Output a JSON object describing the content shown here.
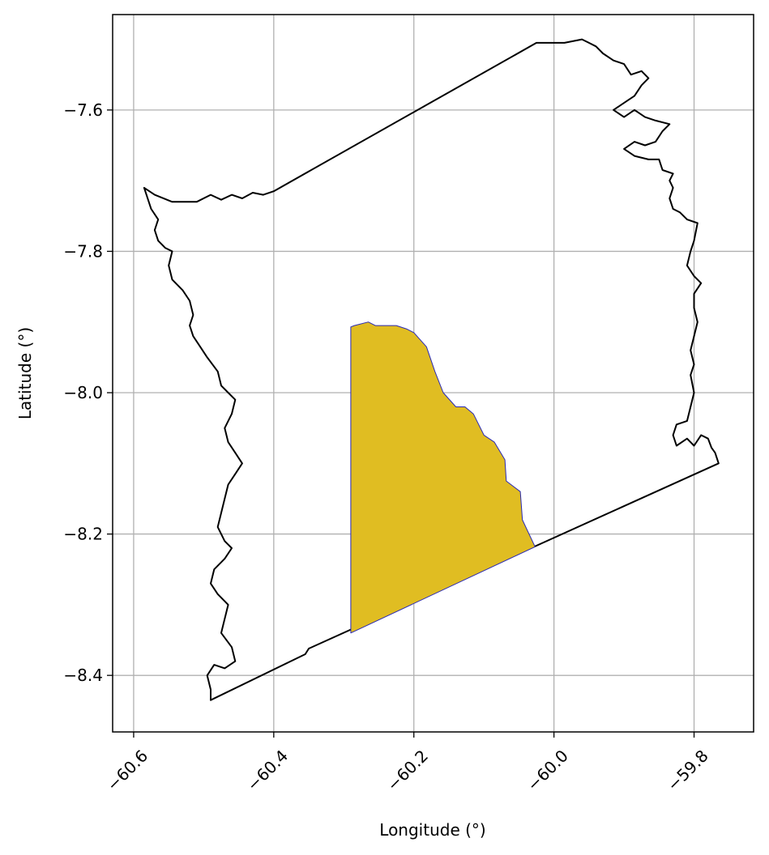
{
  "chart_data": {
    "type": "map",
    "xlabel": "Longitude (°)",
    "ylabel": "Latitude (°)",
    "xlim": [
      -60.63,
      -59.715
    ],
    "ylim": [
      -8.48,
      -7.465
    ],
    "xticks": [
      -60.6,
      -60.4,
      -60.2,
      -60.0,
      -59.8
    ],
    "xtick_labels": [
      "−60.6",
      "−60.4",
      "−60.2",
      "−60.0",
      "−59.8"
    ],
    "yticks": [
      -7.6,
      -7.8,
      -8.0,
      -8.2,
      -8.4
    ],
    "ytick_labels": [
      "−7.6",
      "−7.8",
      "−8.0",
      "−8.2",
      "−8.4"
    ],
    "grid": true,
    "xtick_rotation": 45,
    "layers": [
      {
        "name": "",
        "role": "outer-boundary",
        "fill": "none",
        "edge_color": "#000000",
        "coords": [
          [
            -60.49,
            -8.435
          ],
          [
            -60.355,
            -8.37
          ],
          [
            -60.35,
            -8.362
          ],
          [
            -59.765,
            -8.1
          ],
          [
            -59.77,
            -8.085
          ],
          [
            -59.775,
            -8.078
          ],
          [
            -59.78,
            -8.065
          ],
          [
            -59.79,
            -8.06
          ],
          [
            -59.8,
            -8.075
          ],
          [
            -59.81,
            -8.065
          ],
          [
            -59.825,
            -8.075
          ],
          [
            -59.83,
            -8.06
          ],
          [
            -59.825,
            -8.045
          ],
          [
            -59.81,
            -8.04
          ],
          [
            -59.805,
            -8.02
          ],
          [
            -59.8,
            -8.0
          ],
          [
            -59.805,
            -7.975
          ],
          [
            -59.8,
            -7.96
          ],
          [
            -59.805,
            -7.94
          ],
          [
            -59.8,
            -7.92
          ],
          [
            -59.795,
            -7.9
          ],
          [
            -59.8,
            -7.88
          ],
          [
            -59.8,
            -7.86
          ],
          [
            -59.79,
            -7.845
          ],
          [
            -59.8,
            -7.835
          ],
          [
            -59.81,
            -7.82
          ],
          [
            -59.805,
            -7.8
          ],
          [
            -59.8,
            -7.785
          ],
          [
            -59.795,
            -7.76
          ],
          [
            -59.81,
            -7.755
          ],
          [
            -59.82,
            -7.745
          ],
          [
            -59.83,
            -7.74
          ],
          [
            -59.835,
            -7.725
          ],
          [
            -59.83,
            -7.71
          ],
          [
            -59.835,
            -7.7
          ],
          [
            -59.83,
            -7.69
          ],
          [
            -59.845,
            -7.685
          ],
          [
            -59.85,
            -7.67
          ],
          [
            -59.865,
            -7.67
          ],
          [
            -59.885,
            -7.665
          ],
          [
            -59.9,
            -7.655
          ],
          [
            -59.885,
            -7.645
          ],
          [
            -59.87,
            -7.65
          ],
          [
            -59.855,
            -7.645
          ],
          [
            -59.845,
            -7.63
          ],
          [
            -59.835,
            -7.62
          ],
          [
            -59.855,
            -7.615
          ],
          [
            -59.87,
            -7.61
          ],
          [
            -59.885,
            -7.6
          ],
          [
            -59.9,
            -7.61
          ],
          [
            -59.915,
            -7.6
          ],
          [
            -59.9,
            -7.59
          ],
          [
            -59.885,
            -7.58
          ],
          [
            -59.875,
            -7.565
          ],
          [
            -59.865,
            -7.555
          ],
          [
            -59.875,
            -7.545
          ],
          [
            -59.89,
            -7.55
          ],
          [
            -59.9,
            -7.535
          ],
          [
            -59.915,
            -7.53
          ],
          [
            -59.93,
            -7.52
          ],
          [
            -59.94,
            -7.51
          ],
          [
            -59.95,
            -7.505
          ],
          [
            -59.96,
            -7.5
          ],
          [
            -59.985,
            -7.505
          ],
          [
            -60.025,
            -7.505
          ],
          [
            -60.4,
            -7.715
          ],
          [
            -60.415,
            -7.72
          ],
          [
            -60.43,
            -7.717
          ],
          [
            -60.445,
            -7.725
          ],
          [
            -60.46,
            -7.72
          ],
          [
            -60.475,
            -7.727
          ],
          [
            -60.49,
            -7.72
          ],
          [
            -60.51,
            -7.73
          ],
          [
            -60.545,
            -7.73
          ],
          [
            -60.57,
            -7.72
          ],
          [
            -60.585,
            -7.71
          ],
          [
            -60.575,
            -7.74
          ],
          [
            -60.565,
            -7.755
          ],
          [
            -60.57,
            -7.77
          ],
          [
            -60.565,
            -7.785
          ],
          [
            -60.555,
            -7.795
          ],
          [
            -60.545,
            -7.8
          ],
          [
            -60.55,
            -7.82
          ],
          [
            -60.545,
            -7.84
          ],
          [
            -60.53,
            -7.855
          ],
          [
            -60.52,
            -7.87
          ],
          [
            -60.515,
            -7.89
          ],
          [
            -60.52,
            -7.905
          ],
          [
            -60.515,
            -7.92
          ],
          [
            -60.505,
            -7.935
          ],
          [
            -60.495,
            -7.95
          ],
          [
            -60.48,
            -7.97
          ],
          [
            -60.475,
            -7.99
          ],
          [
            -60.465,
            -8.0
          ],
          [
            -60.455,
            -8.01
          ],
          [
            -60.46,
            -8.03
          ],
          [
            -60.47,
            -8.05
          ],
          [
            -60.465,
            -8.07
          ],
          [
            -60.455,
            -8.085
          ],
          [
            -60.445,
            -8.1
          ],
          [
            -60.455,
            -8.115
          ],
          [
            -60.465,
            -8.13
          ],
          [
            -60.47,
            -8.15
          ],
          [
            -60.475,
            -8.17
          ],
          [
            -60.48,
            -8.19
          ],
          [
            -60.47,
            -8.21
          ],
          [
            -60.46,
            -8.22
          ],
          [
            -60.47,
            -8.235
          ],
          [
            -60.485,
            -8.25
          ],
          [
            -60.49,
            -8.27
          ],
          [
            -60.48,
            -8.285
          ],
          [
            -60.465,
            -8.3
          ],
          [
            -60.47,
            -8.32
          ],
          [
            -60.475,
            -8.34
          ],
          [
            -60.46,
            -8.36
          ],
          [
            -60.455,
            -8.38
          ],
          [
            -60.47,
            -8.39
          ],
          [
            -60.485,
            -8.385
          ],
          [
            -60.495,
            -8.4
          ],
          [
            -60.49,
            -8.42
          ],
          [
            -60.49,
            -8.435
          ]
        ]
      },
      {
        "name": "",
        "role": "highlighted-area",
        "fill": "#e0bd22",
        "edge_color": "#2a2ab5",
        "coords": [
          [
            -60.29,
            -8.34
          ],
          [
            -60.027,
            -8.218
          ],
          [
            -60.045,
            -8.18
          ],
          [
            -60.048,
            -8.14
          ],
          [
            -60.068,
            -8.125
          ],
          [
            -60.07,
            -8.095
          ],
          [
            -60.085,
            -8.07
          ],
          [
            -60.1,
            -8.06
          ],
          [
            -60.115,
            -8.03
          ],
          [
            -60.127,
            -8.02
          ],
          [
            -60.14,
            -8.02
          ],
          [
            -60.158,
            -8.0
          ],
          [
            -60.17,
            -7.97
          ],
          [
            -60.182,
            -7.935
          ],
          [
            -60.2,
            -7.915
          ],
          [
            -60.21,
            -7.91
          ],
          [
            -60.225,
            -7.905
          ],
          [
            -60.255,
            -7.905
          ],
          [
            -60.265,
            -7.9
          ],
          [
            -60.285,
            -7.905
          ],
          [
            -60.29,
            -7.907
          ],
          [
            -60.29,
            -8.34
          ]
        ]
      }
    ]
  }
}
